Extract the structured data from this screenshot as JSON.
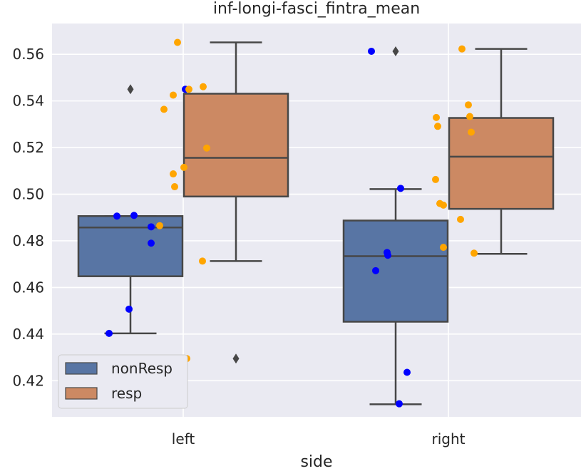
{
  "chart_data": {
    "type": "box",
    "title": "inf-longi-fasci_fintra_mean",
    "xlabel": "side",
    "ylabel": "",
    "categories": [
      "left",
      "right"
    ],
    "hue_order": [
      "nonResp",
      "resp"
    ],
    "colors": {
      "nonResp_box": "#5875a4",
      "resp_box": "#cc8963",
      "nonResp_points": "#0000ff",
      "resp_points": "#ffa500",
      "background": "#eaeaf2",
      "grid": "#ffffff",
      "lines": "#474747"
    },
    "ylim": [
      0.4045,
      0.5732
    ],
    "yticks": [
      "0.42",
      "0.44",
      "0.46",
      "0.48",
      "0.50",
      "0.52",
      "0.54",
      "0.56"
    ],
    "legend": {
      "location": "lower-left",
      "entries": [
        "nonResp",
        "resp"
      ]
    },
    "grid": true,
    "boxes": [
      {
        "category": "left",
        "series": "nonResp",
        "whislo": 0.4403,
        "q1": 0.4648,
        "median": 0.4857,
        "q3": 0.4906,
        "whishi": 0.4906,
        "fliers": [
          0.545
        ]
      },
      {
        "category": "left",
        "series": "resp",
        "whislo": 0.4713,
        "q1": 0.499,
        "median": 0.5156,
        "q3": 0.5431,
        "whishi": 0.5651,
        "fliers": [
          0.4295
        ]
      },
      {
        "category": "right",
        "series": "nonResp",
        "whislo": 0.4099,
        "q1": 0.4453,
        "median": 0.4734,
        "q3": 0.4887,
        "whishi": 0.5022,
        "fliers": [
          0.5613
        ]
      },
      {
        "category": "right",
        "series": "resp",
        "whislo": 0.4744,
        "q1": 0.4937,
        "median": 0.5161,
        "q3": 0.5327,
        "whishi": 0.5623,
        "fliers": []
      }
    ],
    "points": [
      {
        "category": "left",
        "series": "nonResp",
        "values": [
          0.545,
          0.4906,
          0.4909,
          0.486,
          0.479,
          0.4507,
          0.4403
        ]
      },
      {
        "category": "left",
        "series": "resp",
        "values": [
          0.5651,
          0.5425,
          0.545,
          0.5461,
          0.5364,
          0.5198,
          0.5115,
          0.5087,
          0.5032,
          0.4865,
          0.4713,
          0.4295
        ]
      },
      {
        "category": "right",
        "series": "nonResp",
        "values": [
          0.5613,
          0.5025,
          0.475,
          0.4738,
          0.4672,
          0.4236,
          0.4101
        ]
      },
      {
        "category": "right",
        "series": "resp",
        "values": [
          0.5623,
          0.5383,
          0.5333,
          0.5329,
          0.5291,
          0.5266,
          0.5063,
          0.496,
          0.4953,
          0.4892,
          0.4772,
          0.4747
        ]
      }
    ]
  }
}
